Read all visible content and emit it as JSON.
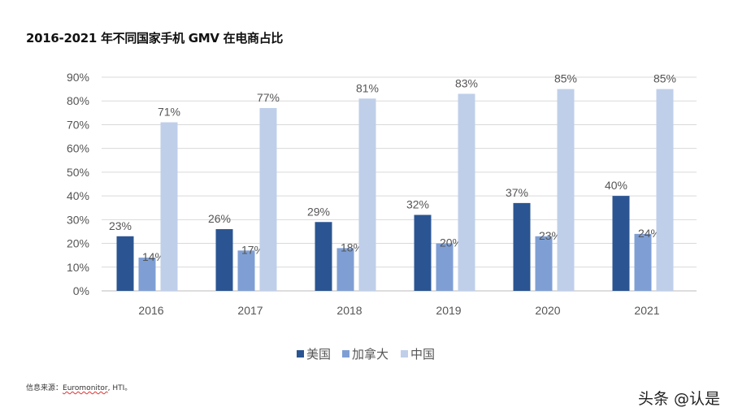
{
  "title": "2016-2021 年不同国家手机 GMV 在电商占比",
  "source_label": "信息来源：",
  "source_text": "Euromonitor",
  "source_rest": ", HTI。",
  "watermark": "头条 @认是",
  "chart_data": {
    "type": "bar",
    "title": "2016-2021 年不同国家手机 GMV 在电商占比",
    "categories": [
      "2016",
      "2017",
      "2018",
      "2019",
      "2020",
      "2021"
    ],
    "series": [
      {
        "name": "美国",
        "color": "#2b5592",
        "values": [
          23,
          26,
          29,
          32,
          37,
          40
        ]
      },
      {
        "name": "加拿大",
        "color": "#7f9fd4",
        "values": [
          14,
          17,
          18,
          20,
          23,
          24
        ]
      },
      {
        "name": "中国",
        "color": "#bfcfea",
        "values": [
          71,
          77,
          81,
          83,
          85,
          85
        ]
      }
    ],
    "ylim": [
      0,
      90
    ],
    "yticks": [
      "0%",
      "10%",
      "20%",
      "30%",
      "40%",
      "50%",
      "60%",
      "70%",
      "80%",
      "90%"
    ],
    "value_suffix": "%",
    "grid": true,
    "legend_position": "bottom"
  }
}
